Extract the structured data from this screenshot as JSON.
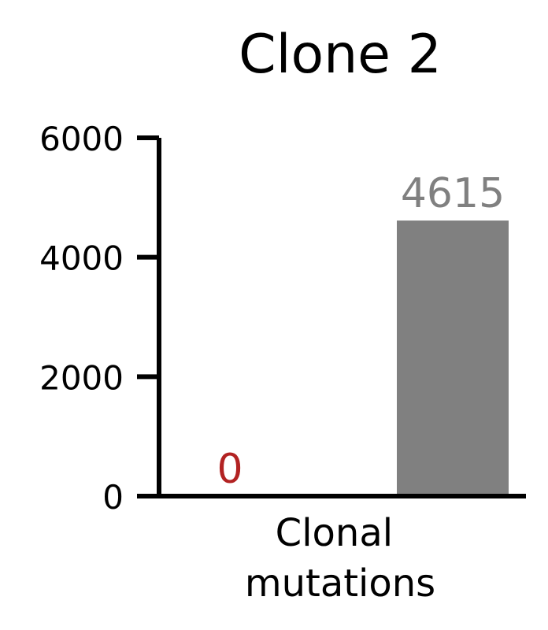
{
  "chart_data": {
    "type": "bar",
    "title": "Clone 2",
    "xlabel": "",
    "ylabel": "",
    "categories": [
      "Clonal\nmutations"
    ],
    "category_lines": [
      "Clonal",
      "mutations"
    ],
    "series": [
      {
        "values": [
          0
        ],
        "color": "#b22222"
      },
      {
        "values": [
          4615
        ],
        "color": "#808080"
      }
    ],
    "yticks": [
      0,
      2000,
      4000,
      6000
    ],
    "ytick_labels": [
      "0",
      "2000",
      "4000",
      "6000"
    ],
    "ylim": [
      0,
      6000
    ],
    "grid": false,
    "legend": "none"
  }
}
